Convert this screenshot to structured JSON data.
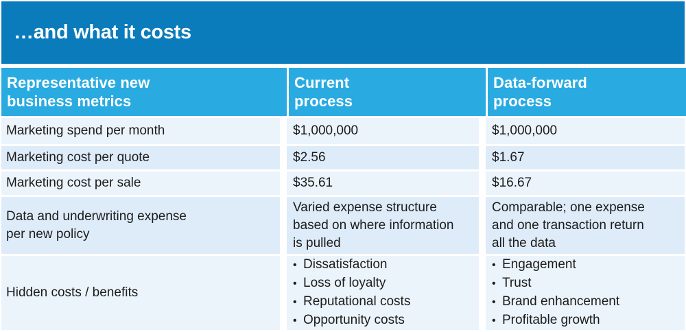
{
  "slide": {
    "title": "…and what it costs"
  },
  "colors": {
    "banner_blue": "#0b7cbb",
    "header_blue": "#29abe2",
    "row_light": "#ebf4fb",
    "row_shaded": "#deebf8",
    "text_dark": "#1c1c1c",
    "text_white": "#ffffff"
  },
  "table": {
    "columns": [
      {
        "label": "Representative new\nbusiness metrics"
      },
      {
        "label": "Current\nprocess"
      },
      {
        "label": "Data-forward\nprocess"
      }
    ],
    "rows": [
      {
        "metric": "Marketing spend per month",
        "current": "$1,000,000",
        "data_forward": "$1,000,000"
      },
      {
        "metric": "Marketing cost per quote",
        "current": "$2.56",
        "data_forward": "$1.67"
      },
      {
        "metric": "Marketing cost per sale",
        "current": "$35.61",
        "data_forward": "$16.67"
      },
      {
        "metric": "Data and underwriting expense\nper new policy",
        "current": "Varied expense structure\nbased on where information\nis pulled",
        "data_forward": "Comparable; one expense\nand one transaction return\nall the data"
      },
      {
        "metric": "Hidden costs / benefits",
        "current_bullets": [
          "Dissatisfaction",
          "Loss of loyalty",
          "Reputational costs",
          "Opportunity costs"
        ],
        "data_forward_bullets": [
          "Engagement",
          "Trust",
          "Brand enhancement",
          "Profitable growth"
        ]
      }
    ]
  }
}
